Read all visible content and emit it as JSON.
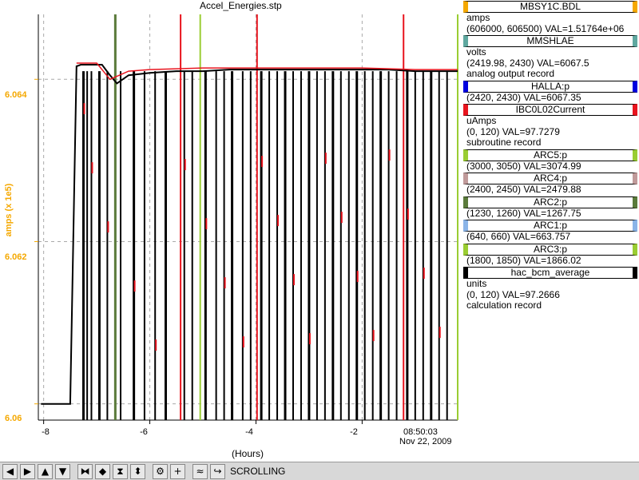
{
  "chart_data": {
    "type": "line",
    "title": "Accel_Energies.stp",
    "ylabel": "amps (x 1e5)",
    "xlabel": "(Hours)",
    "x_range": [
      -8.1,
      -0.2
    ],
    "y_range": [
      6.0598,
      6.0648
    ],
    "x_ticks": [
      -8,
      -6,
      -4,
      -2
    ],
    "x_tick_labels": [
      "-8",
      "-6",
      "-4",
      "-2"
    ],
    "y_ticks": [
      6.06,
      6.062,
      6.064
    ],
    "y_tick_labels": [
      "6.06",
      "6.062",
      "6.064"
    ],
    "end_time": "08:50:03",
    "end_date": "Nov 22, 2009",
    "grid": true,
    "series": [
      {
        "name": "MBSY1C.BDL",
        "color": "#000000",
        "x": [
          -8.05,
          -7.5,
          -7.38,
          -7.3,
          -7.0,
          -6.9,
          -6.75,
          -6.62,
          -6.4,
          -6.0,
          -5.5,
          -5.0,
          -4.5,
          -4.0,
          -3.5,
          -3.0,
          -2.5,
          -2.0,
          -1.5,
          -1.0,
          -0.5,
          -0.2
        ],
        "y": [
          6.06,
          6.06,
          6.06416,
          6.06418,
          6.06418,
          6.06418,
          6.06405,
          6.06395,
          6.06405,
          6.06408,
          6.0641,
          6.0641,
          6.06412,
          6.06412,
          6.06412,
          6.06412,
          6.06412,
          6.06412,
          6.06412,
          6.0641,
          6.0641,
          6.0641
        ]
      },
      {
        "name": "IBC0L02Current",
        "color": "#e8141e",
        "x": [
          -7.38,
          -7.0,
          -6.75,
          -6.4,
          -6.0,
          -5.0,
          -4.0,
          -3.0,
          -2.0,
          -1.0,
          -0.2
        ],
        "y": [
          6.0642,
          6.0642,
          6.064,
          6.0641,
          6.06412,
          6.06414,
          6.06414,
          6.06414,
          6.06414,
          6.06412,
          6.06412
        ]
      }
    ],
    "markers": [
      {
        "x": -6.65,
        "color": "#5a7a3a"
      },
      {
        "x": -5.42,
        "color": "#e8141e"
      },
      {
        "x": -5.05,
        "color": "#9acd32"
      },
      {
        "x": -3.98,
        "color": "#e8141e"
      },
      {
        "x": -1.22,
        "color": "#e8141e"
      },
      {
        "x": -0.2,
        "color": "#9acd32"
      }
    ],
    "dropouts": [
      -7.25,
      -7.18,
      -7.1,
      -6.95,
      -6.8,
      -6.55,
      -6.3,
      -6.1,
      -5.9,
      -5.7,
      -5.35,
      -5.2,
      -4.95,
      -4.75,
      -4.6,
      -4.45,
      -4.25,
      -4.1,
      -3.9,
      -3.75,
      -3.6,
      -3.45,
      -3.3,
      -3.15,
      -3.0,
      -2.85,
      -2.7,
      -2.55,
      -2.4,
      -2.25,
      -2.1,
      -1.95,
      -1.8,
      -1.65,
      -1.5,
      -1.35,
      -1.15,
      -1.0,
      -0.85,
      -0.7,
      -0.55,
      -0.4
    ]
  },
  "legend": [
    {
      "box_label": "MBSY1C.BDL",
      "box_color": "#f5a800",
      "lines": [
        "amps",
        "(606000, 606500)  VAL=1.51764e+06"
      ]
    },
    {
      "box_label": "MMSHLAE",
      "box_color": "#5fa8a0",
      "lines": [
        "volts",
        "(2419.98, 2430)  VAL=6067.5",
        "analog output record"
      ]
    },
    {
      "box_label": "HALLA:p",
      "box_color": "#0000e0",
      "lines": [
        "(2420, 2430)  VAL=6067.35"
      ]
    },
    {
      "box_label": "IBC0L02Current",
      "box_color": "#e8141e",
      "lines": [
        "uAmps",
        "(0, 120)  VAL=97.7279",
        "subroutine record"
      ]
    },
    {
      "box_label": "ARC5:p",
      "box_color": "#9acd32",
      "lines": [
        "(3000, 3050)  VAL=3074.99"
      ]
    },
    {
      "box_label": "ARC4:p",
      "box_color": "#c09a9a",
      "lines": [
        "(2400, 2450)  VAL=2479.88"
      ]
    },
    {
      "box_label": "ARC2:p",
      "box_color": "#5a7a3a",
      "lines": [
        "(1230, 1260)  VAL=1267.75"
      ]
    },
    {
      "box_label": "ARC1:p",
      "box_color": "#8ab4e8",
      "lines": [
        "(640, 660)  VAL=663.757"
      ]
    },
    {
      "box_label": "ARC3:p",
      "box_color": "#9acd32",
      "lines": [
        "(1800, 1850)  VAL=1866.02"
      ]
    },
    {
      "box_label": "hac_bcm_average",
      "box_color": "#000000",
      "lines": [
        "units",
        "(0, 120)  VAL=97.2666",
        "calculation record"
      ]
    }
  ],
  "toolbar": {
    "status": "SCROLLING",
    "buttons": [
      {
        "icon": "arrow-left-icon",
        "glyph": "◀"
      },
      {
        "icon": "arrow-right-icon",
        "glyph": "▶"
      },
      {
        "icon": "arrow-up-icon",
        "glyph": "▲"
      },
      {
        "icon": "arrow-down-icon",
        "glyph": "▼"
      },
      {
        "icon": "zoom-in-horizontal-icon",
        "glyph": "⧓"
      },
      {
        "icon": "zoom-out-horizontal-icon",
        "glyph": "◆"
      },
      {
        "icon": "zoom-in-vertical-icon",
        "glyph": "⧗"
      },
      {
        "icon": "zoom-out-vertical-icon",
        "glyph": "⬍"
      },
      {
        "icon": "config-icon",
        "glyph": "⚙"
      },
      {
        "icon": "add-icon",
        "glyph": "+"
      },
      {
        "icon": "undo-icon",
        "glyph": "≈"
      },
      {
        "icon": "scroll-icon",
        "glyph": "↪"
      }
    ]
  }
}
